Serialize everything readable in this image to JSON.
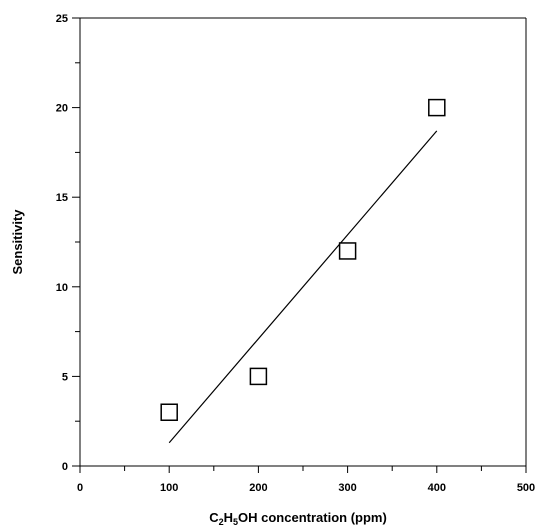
{
  "chart_data": {
    "type": "scatter",
    "xlabel": {
      "parts": [
        {
          "text": "C",
          "sub": false
        },
        {
          "text": "2",
          "sub": true
        },
        {
          "text": "H",
          "sub": false
        },
        {
          "text": "5",
          "sub": true
        },
        {
          "text": "OH concentration (ppm)",
          "sub": false
        }
      ]
    },
    "ylabel": "Sensitivity",
    "xlim": [
      0,
      500
    ],
    "ylim": [
      0,
      25
    ],
    "x_ticks": [
      0,
      100,
      200,
      300,
      400,
      500
    ],
    "x_tick_labels": [
      "0",
      "100",
      "200",
      "300",
      "400",
      "500"
    ],
    "x_minor_step": 50,
    "y_ticks": [
      0,
      5,
      10,
      15,
      20,
      25
    ],
    "y_tick_labels": [
      "0",
      "5",
      "10",
      "15",
      "20",
      "25"
    ],
    "y_minor_step": 2.5,
    "grid": false,
    "series": [
      {
        "marker": "open-square",
        "color": "#000000",
        "points": [
          {
            "x": 100,
            "y": 3
          },
          {
            "x": 200,
            "y": 5
          },
          {
            "x": 300,
            "y": 12
          },
          {
            "x": 400,
            "y": 20
          }
        ]
      }
    ],
    "fit_line": {
      "color": "#000000",
      "points": [
        {
          "x": 100,
          "y": 1.3
        },
        {
          "x": 400,
          "y": 18.7
        }
      ]
    }
  }
}
